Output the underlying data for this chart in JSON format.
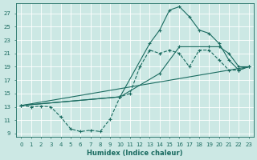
{
  "bg_color": "#cce8e4",
  "grid_color": "#b8ddd8",
  "line_color": "#1a6b60",
  "xlabel": "Humidex (Indice chaleur)",
  "xlim": [
    -0.5,
    23.5
  ],
  "ylim": [
    8.5,
    28.5
  ],
  "xticks": [
    0,
    1,
    2,
    3,
    4,
    5,
    6,
    7,
    8,
    9,
    10,
    11,
    12,
    13,
    14,
    15,
    16,
    17,
    18,
    19,
    20,
    21,
    22,
    23
  ],
  "yticks": [
    9,
    11,
    13,
    15,
    17,
    19,
    21,
    23,
    25,
    27
  ],
  "line1_low": {
    "x": [
      0,
      1,
      2,
      3,
      4,
      5,
      6,
      7,
      8,
      9,
      10,
      11,
      12,
      13,
      14,
      15,
      16,
      17,
      18,
      19,
      20,
      21,
      22,
      23
    ],
    "y": [
      13.2,
      13.0,
      13.1,
      13.0,
      11.5,
      9.7,
      9.3,
      9.5,
      9.3,
      11.2,
      14.5,
      15.0,
      19.0,
      21.5,
      21.0,
      21.5,
      21.0,
      19.0,
      21.5,
      21.5,
      20.0,
      18.5,
      18.5,
      19.0
    ]
  },
  "line2_grad": {
    "x": [
      0,
      23
    ],
    "y": [
      13.2,
      19.0
    ]
  },
  "line3_med": {
    "x": [
      0,
      10,
      14,
      16,
      19,
      20,
      21,
      22,
      23
    ],
    "y": [
      13.2,
      14.5,
      18.0,
      22.0,
      22.0,
      22.0,
      21.0,
      19.0,
      19.0
    ]
  },
  "line4_peak": {
    "x": [
      0,
      10,
      13,
      14,
      15,
      16,
      17,
      18,
      19,
      20,
      21,
      22,
      23
    ],
    "y": [
      13.2,
      14.5,
      22.5,
      24.5,
      27.5,
      28.0,
      26.5,
      24.5,
      24.0,
      22.5,
      20.0,
      18.5,
      19.0
    ]
  }
}
